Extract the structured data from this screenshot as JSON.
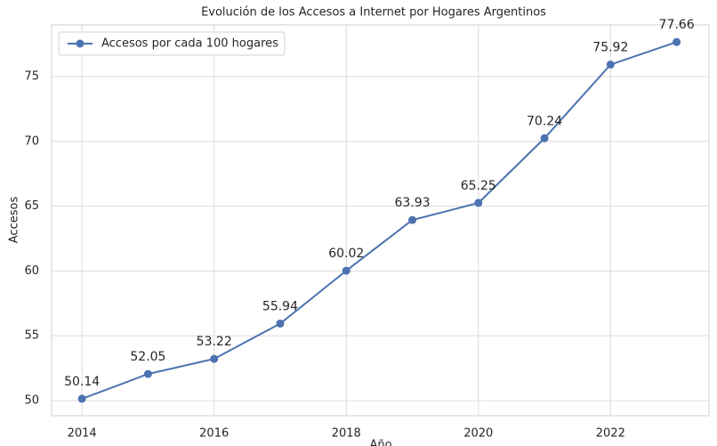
{
  "chart_data": {
    "type": "line",
    "title": "Evolución de los Accesos a Internet por Hogares Argentinos",
    "x_label": "Año",
    "y_label": "Accesos",
    "x": [
      2014,
      2015,
      2016,
      2017,
      2018,
      2019,
      2020,
      2021,
      2022,
      2023
    ],
    "series": [
      {
        "name": "Accesos por cada 100 hogares",
        "color": "#4c72b0",
        "values": [
          50.14,
          52.05,
          53.22,
          55.94,
          60.02,
          63.93,
          65.25,
          70.24,
          75.92,
          77.66
        ]
      }
    ],
    "xlim": [
      2013.54,
      2023.49
    ],
    "xticks": [
      2014,
      2016,
      2018,
      2020,
      2022
    ],
    "ylim": [
      48.83,
      78.98
    ],
    "yticks": [
      50,
      55,
      60,
      65,
      70,
      75
    ],
    "grid": true,
    "legend": "upper left"
  }
}
